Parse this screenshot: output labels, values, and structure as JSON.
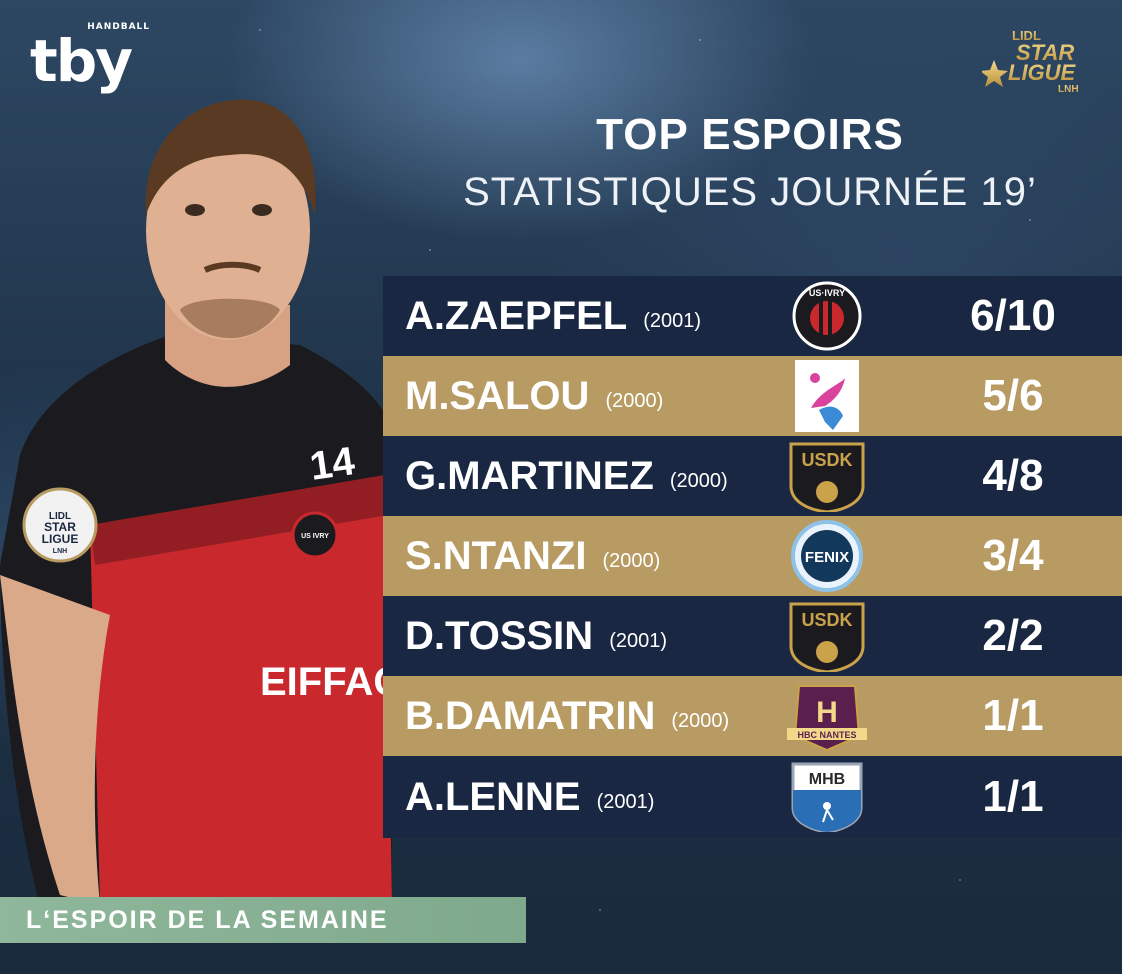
{
  "header": {
    "brand_logo_text": "tby",
    "brand_logo_sub": "HANDBALL",
    "league_logo": [
      "LIDL",
      "STAR",
      "LIGUE",
      "LNH"
    ],
    "title": "TOP ESPOIRS",
    "subtitle": "STATISTIQUES JOURNÉE 19’"
  },
  "player_jersey": {
    "number": "14",
    "sponsor": "EIFFAGE",
    "league_patch": [
      "LIDL",
      "STAR",
      "LIGUE",
      "LNH"
    ],
    "club_badge": "US IVRY"
  },
  "rows": [
    {
      "name": "A.ZAEPFEL",
      "year": "(2001)",
      "club_icon": "us-ivry-badge",
      "club_text": "US·IVRY",
      "score": "6/10",
      "style": "dark"
    },
    {
      "name": "M.SALOU",
      "year": "(2000)",
      "club_icon": "pink-figure-badge",
      "club_text": "",
      "score": "5/6",
      "style": "gold"
    },
    {
      "name": "G.MARTINEZ",
      "year": "(2000)",
      "club_icon": "usdk-badge",
      "club_text": "USDK",
      "score": "4/8",
      "style": "dark"
    },
    {
      "name": "S.NTANZI",
      "year": "(2000)",
      "club_icon": "fenix-badge",
      "club_text": "FENIX",
      "score": "3/4",
      "style": "gold"
    },
    {
      "name": "D.TOSSIN",
      "year": "(2001)",
      "club_icon": "usdk-badge",
      "club_text": "USDK",
      "score": "2/2",
      "style": "dark"
    },
    {
      "name": "B.DAMATRIN",
      "year": "(2000)",
      "club_icon": "hbc-nantes-badge",
      "club_text": "HBC NANTES",
      "score": "1/1",
      "style": "gold"
    },
    {
      "name": "A.LENNE",
      "year": "(2001)",
      "club_icon": "mhb-badge",
      "club_text": "MHB",
      "score": "1/1",
      "style": "dark"
    }
  ],
  "footer": {
    "banner": "L‘ESPOIR DE LA SEMAINE"
  },
  "colors": {
    "row_dark": "#1a2742",
    "row_gold": "#b89b62",
    "banner": "#8fb79b"
  }
}
